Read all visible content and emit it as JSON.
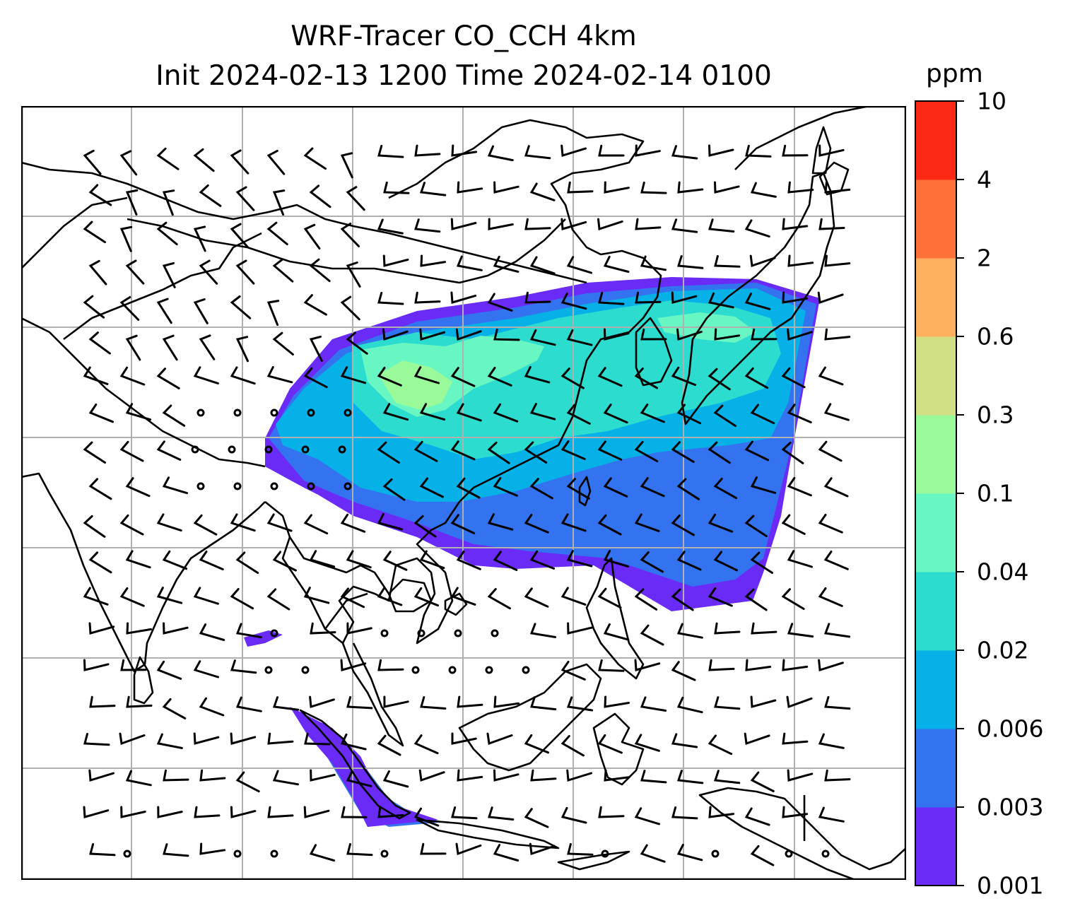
{
  "title": {
    "line1": "WRF-Tracer CO_CCH 4km",
    "line2": "Init 2024-02-13 1200 Time 2024-02-14 0100"
  },
  "colorbar": {
    "units_label": "ppm",
    "levels": [
      "0.001",
      "0.003",
      "0.006",
      "0.02",
      "0.04",
      "0.1",
      "0.3",
      "0.6",
      "2",
      "4",
      "10"
    ],
    "colors": [
      "#6a2bf7",
      "#3473ef",
      "#06b1e8",
      "#2cdccf",
      "#68f7c3",
      "#9afa9a",
      "#d1e085",
      "#feb05f",
      "#fe7239",
      "#fe2816"
    ]
  },
  "map": {
    "gridlines": true,
    "features": [
      "coastlines",
      "country-borders",
      "wind-barbs",
      "co-tracer-concentration"
    ]
  }
}
